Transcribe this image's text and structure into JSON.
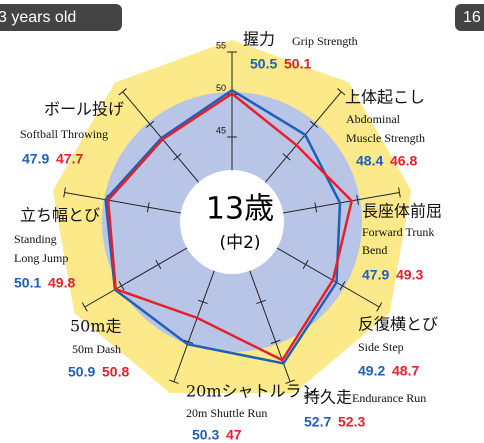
{
  "badges": {
    "left": "3 years old",
    "right": "16"
  },
  "center": {
    "age": "13歳",
    "grade": "(中2)"
  },
  "chart_data": {
    "type": "radar",
    "categories": [
      "握力",
      "上体起こし",
      "長座体前屈",
      "反復横とび",
      "持久走",
      "20mシャトルラン",
      "50m走",
      "立ち幅とび",
      "ボール投げ"
    ],
    "english": [
      [
        "Grip Strength"
      ],
      [
        "Abdominal",
        "Muscle Strength"
      ],
      [
        "Forward Trunk",
        "Bend"
      ],
      [
        "Side Step"
      ],
      [
        "Endurance Run"
      ],
      [
        "20m Shuttle Run"
      ],
      [
        "50m Dash"
      ],
      [
        "Standing",
        "Long Jump"
      ],
      [
        "Softball Throwing"
      ]
    ],
    "series": [
      {
        "color": "#1f5fb8",
        "values": [
          50.5,
          48.4,
          47.9,
          49.2,
          52.7,
          50.3,
          50.9,
          50.1,
          47.9
        ]
      },
      {
        "color": "#e4202a",
        "values": [
          50.1,
          46.8,
          49.3,
          48.7,
          52.3,
          47.0,
          50.8,
          49.8,
          47.7
        ]
      }
    ],
    "rlim": [
      35,
      55
    ],
    "rticks": [
      45,
      50,
      55
    ]
  }
}
